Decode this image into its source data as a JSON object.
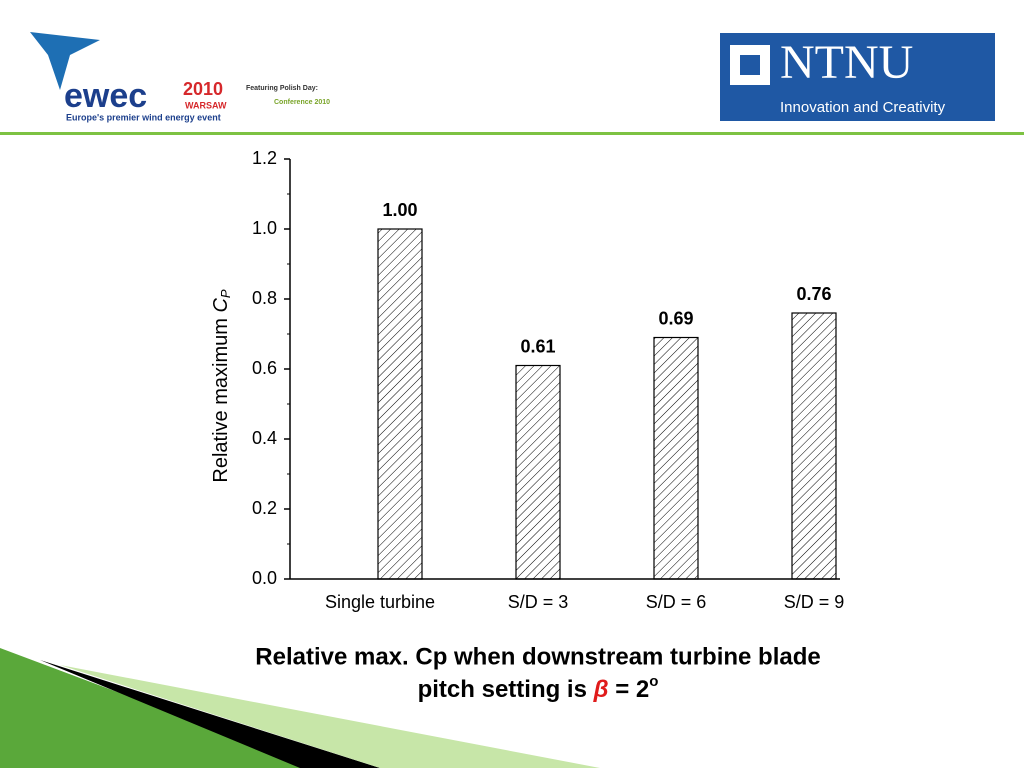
{
  "chart_data": {
    "type": "bar",
    "y_label": "Relative maximum",
    "y_label_var": "C",
    "y_label_sub": "P",
    "categories": [
      "Single turbine",
      "S/D = 3",
      "S/D = 6",
      "S/D = 9"
    ],
    "values": [
      1.0,
      0.61,
      0.69,
      0.76
    ],
    "value_labels": [
      "1.00",
      "0.61",
      "0.69",
      "0.76"
    ],
    "color": "#000000",
    "ylim": [
      0,
      1.2
    ],
    "yticks": [
      {
        "value": 0,
        "label": "0.0"
      },
      0.2,
      0.4,
      0.6,
      0.8,
      {
        "value": 1,
        "label": "1.0"
      },
      1.2
    ],
    "minor_yticks": [
      0.1,
      0.3,
      0.5,
      0.7,
      0.9,
      1.1
    ],
    "grid": false
  },
  "slide": {
    "caption_line1": "Relative max. Cp when downstream turbine blade",
    "caption_line2": "pitch setting is",
    "caption_symbol": "β",
    "caption_rest": "= 2",
    "caption_sup": "o",
    "logo_left": {
      "name": "ewec",
      "year": "2010",
      "city": "WARSAW",
      "tagline": "Europe's premier wind energy event",
      "featuring": "Featuring Polish Day:",
      "conference": "Conference 2010"
    },
    "logo_right": {
      "name": "NTNU",
      "tagline": "Innovation and Creativity"
    }
  }
}
